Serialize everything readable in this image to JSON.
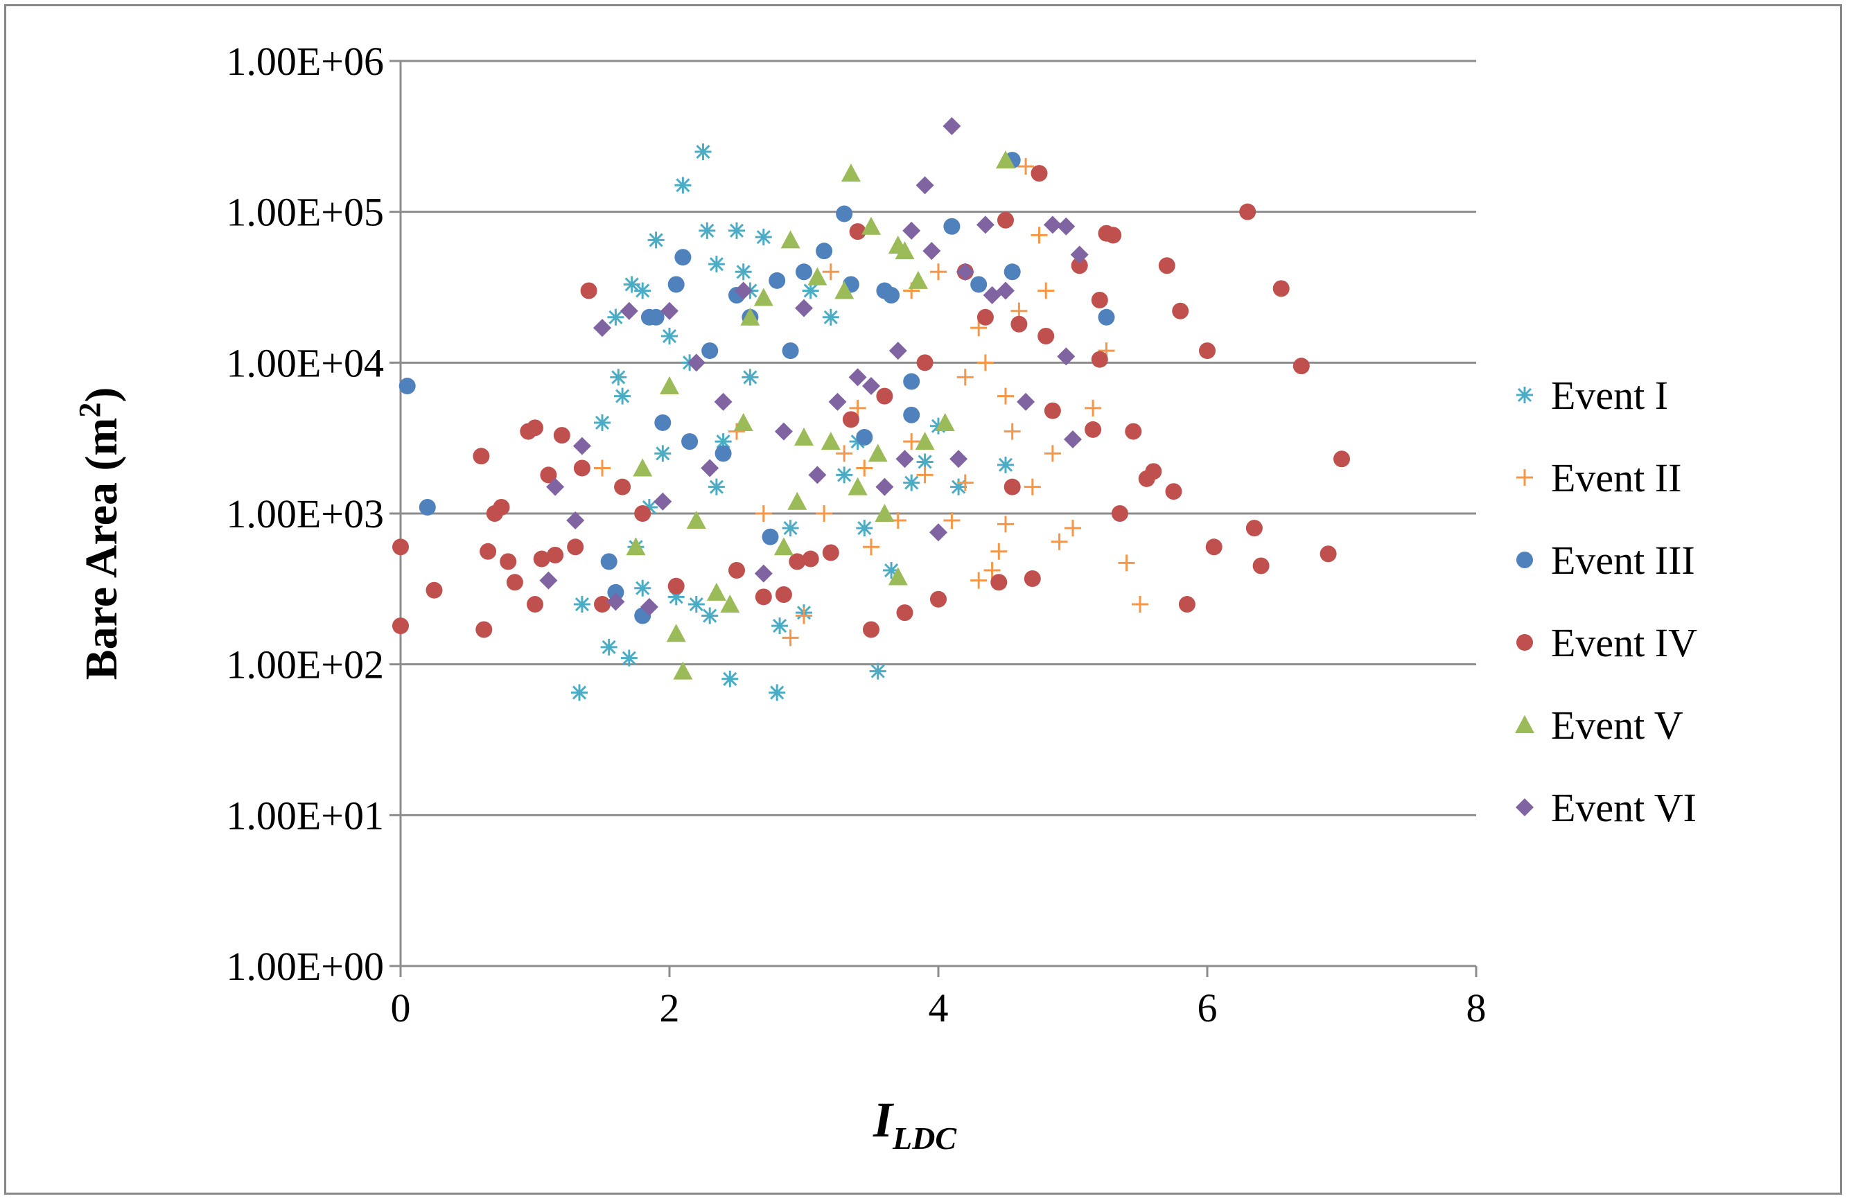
{
  "chart_data": {
    "type": "scatter",
    "title": "",
    "xlabel": "I",
    "xlabel_sub": "LDC",
    "ylabel": "Bare Area (m",
    "ylabel_sup": "2",
    "ylabel_end": ")",
    "xlim": [
      0,
      8
    ],
    "ylim": [
      1,
      1000000
    ],
    "y_scale": "log",
    "x_ticks": [
      "0",
      "2",
      "4",
      "6",
      "8"
    ],
    "y_ticks": [
      "1.00E+00",
      "1.00E+01",
      "1.00E+02",
      "1.00E+03",
      "1.00E+04",
      "1.00E+05",
      "1.00E+06"
    ],
    "grid": "horizontal",
    "legend_position": "right",
    "series": [
      {
        "name": "Event I",
        "color": "#4bacc6",
        "marker": "star",
        "points": [
          [
            1.33,
            65
          ],
          [
            1.35,
            250
          ],
          [
            1.5,
            4000
          ],
          [
            1.55,
            130
          ],
          [
            1.6,
            20000
          ],
          [
            1.62,
            8000
          ],
          [
            1.7,
            110
          ],
          [
            1.72,
            33000
          ],
          [
            1.8,
            30000
          ],
          [
            1.75,
            600
          ],
          [
            1.8,
            320
          ],
          [
            1.85,
            1100
          ],
          [
            1.9,
            65000
          ],
          [
            1.95,
            2500
          ],
          [
            2.05,
            280
          ],
          [
            2.1,
            150000
          ],
          [
            2.15,
            10000
          ],
          [
            2.2,
            250
          ],
          [
            2.25,
            250000
          ],
          [
            2.28,
            75000
          ],
          [
            2.3,
            210
          ],
          [
            2.35,
            45000
          ],
          [
            2.4,
            3000
          ],
          [
            2.45,
            80
          ],
          [
            2.5,
            75000
          ],
          [
            2.55,
            40000
          ],
          [
            2.6,
            30000
          ],
          [
            2.7,
            68000
          ],
          [
            2.8,
            65
          ],
          [
            2.82,
            180
          ],
          [
            2.9,
            800
          ],
          [
            3.0,
            220
          ],
          [
            3.05,
            30000
          ],
          [
            3.2,
            20000
          ],
          [
            3.3,
            1800
          ],
          [
            3.4,
            3000
          ],
          [
            3.45,
            800
          ],
          [
            3.55,
            90
          ],
          [
            3.65,
            420
          ],
          [
            3.8,
            1600
          ],
          [
            3.9,
            2200
          ],
          [
            4.0,
            3800
          ],
          [
            4.15,
            1500
          ],
          [
            4.5,
            2100
          ],
          [
            2.0,
            15000
          ],
          [
            1.65,
            6000
          ],
          [
            2.6,
            8000
          ],
          [
            2.35,
            1500
          ]
        ]
      },
      {
        "name": "Event II",
        "color": "#f79646",
        "marker": "plus",
        "points": [
          [
            1.5,
            2000
          ],
          [
            2.5,
            3500
          ],
          [
            2.7,
            1000
          ],
          [
            2.9,
            150
          ],
          [
            3.0,
            210
          ],
          [
            3.15,
            1000
          ],
          [
            3.3,
            2500
          ],
          [
            3.4,
            5000
          ],
          [
            3.5,
            600
          ],
          [
            3.6,
            1500
          ],
          [
            3.7,
            900
          ],
          [
            3.8,
            3000
          ],
          [
            3.9,
            1800
          ],
          [
            4.0,
            40000
          ],
          [
            4.1,
            900
          ],
          [
            4.2,
            1600
          ],
          [
            4.3,
            17000
          ],
          [
            4.35,
            10000
          ],
          [
            4.4,
            420
          ],
          [
            4.45,
            560
          ],
          [
            4.5,
            6000
          ],
          [
            4.55,
            3500
          ],
          [
            4.6,
            22000
          ],
          [
            4.7,
            1500
          ],
          [
            4.75,
            70000
          ],
          [
            4.8,
            30000
          ],
          [
            4.85,
            2500
          ],
          [
            4.9,
            650
          ],
          [
            5.0,
            800
          ],
          [
            5.15,
            5000
          ],
          [
            5.25,
            12000
          ],
          [
            5.4,
            470
          ],
          [
            5.5,
            250
          ],
          [
            4.3,
            360
          ],
          [
            4.5,
            850
          ],
          [
            3.45,
            2000
          ],
          [
            4.65,
            200000
          ],
          [
            3.8,
            30000
          ],
          [
            4.2,
            8000
          ],
          [
            3.2,
            40000
          ]
        ]
      },
      {
        "name": "Event III",
        "color": "#4f81bd",
        "marker": "circle",
        "points": [
          [
            0.05,
            7000
          ],
          [
            0.2,
            1100
          ],
          [
            1.55,
            480
          ],
          [
            1.6,
            300
          ],
          [
            1.8,
            210
          ],
          [
            1.85,
            20000
          ],
          [
            1.9,
            20000
          ],
          [
            2.05,
            33000
          ],
          [
            2.1,
            50000
          ],
          [
            2.15,
            3000
          ],
          [
            2.3,
            12000
          ],
          [
            2.5,
            28000
          ],
          [
            2.6,
            20000
          ],
          [
            2.8,
            35000
          ],
          [
            2.9,
            12000
          ],
          [
            3.0,
            40000
          ],
          [
            3.15,
            55000
          ],
          [
            3.3,
            97000
          ],
          [
            3.45,
            3200
          ],
          [
            3.6,
            30000
          ],
          [
            3.8,
            7500
          ],
          [
            4.1,
            80000
          ],
          [
            4.3,
            33000
          ],
          [
            4.55,
            40000
          ],
          [
            4.55,
            220000
          ],
          [
            5.25,
            20000
          ],
          [
            3.65,
            28000
          ],
          [
            2.4,
            2500
          ],
          [
            3.8,
            4500
          ],
          [
            2.75,
            700
          ],
          [
            1.95,
            4000
          ],
          [
            3.35,
            33000
          ]
        ]
      },
      {
        "name": "Event IV",
        "color": "#c0504d",
        "marker": "circle",
        "points": [
          [
            0.0,
            180
          ],
          [
            0.0,
            600
          ],
          [
            0.25,
            310
          ],
          [
            0.6,
            2400
          ],
          [
            0.62,
            170
          ],
          [
            0.65,
            560
          ],
          [
            0.7,
            1000
          ],
          [
            0.75,
            1100
          ],
          [
            0.8,
            480
          ],
          [
            0.85,
            350
          ],
          [
            0.95,
            3500
          ],
          [
            1.0,
            3700
          ],
          [
            1.0,
            250
          ],
          [
            1.05,
            500
          ],
          [
            1.1,
            1800
          ],
          [
            1.15,
            530
          ],
          [
            1.2,
            3300
          ],
          [
            1.3,
            600
          ],
          [
            1.35,
            2000
          ],
          [
            1.4,
            30000
          ],
          [
            1.5,
            250
          ],
          [
            1.65,
            1500
          ],
          [
            1.8,
            1000
          ],
          [
            2.05,
            330
          ],
          [
            2.5,
            420
          ],
          [
            2.7,
            280
          ],
          [
            2.85,
            290
          ],
          [
            2.95,
            480
          ],
          [
            3.05,
            500
          ],
          [
            3.2,
            550
          ],
          [
            3.35,
            4200
          ],
          [
            3.5,
            170
          ],
          [
            3.6,
            6000
          ],
          [
            3.75,
            220
          ],
          [
            3.9,
            10000
          ],
          [
            4.0,
            270
          ],
          [
            4.2,
            40000
          ],
          [
            4.35,
            20000
          ],
          [
            4.45,
            350
          ],
          [
            4.5,
            88000
          ],
          [
            4.55,
            1500
          ],
          [
            4.6,
            18000
          ],
          [
            4.7,
            370
          ],
          [
            4.75,
            180000
          ],
          [
            4.8,
            15000
          ],
          [
            4.85,
            4800
          ],
          [
            5.05,
            44000
          ],
          [
            5.15,
            3600
          ],
          [
            5.2,
            10500
          ],
          [
            5.25,
            72000
          ],
          [
            5.3,
            70000
          ],
          [
            5.35,
            1000
          ],
          [
            5.45,
            3500
          ],
          [
            5.55,
            1700
          ],
          [
            5.6,
            1900
          ],
          [
            5.7,
            44000
          ],
          [
            5.75,
            1400
          ],
          [
            5.8,
            22000
          ],
          [
            5.85,
            250
          ],
          [
            6.0,
            12000
          ],
          [
            6.05,
            600
          ],
          [
            6.3,
            100000
          ],
          [
            6.35,
            800
          ],
          [
            6.4,
            450
          ],
          [
            6.55,
            31000
          ],
          [
            6.7,
            9500
          ],
          [
            6.9,
            540
          ],
          [
            7.0,
            2300
          ],
          [
            5.2,
            26000
          ],
          [
            3.4,
            74000
          ]
        ]
      },
      {
        "name": "Event V",
        "color": "#9bbb59",
        "marker": "triangle",
        "points": [
          [
            1.75,
            600
          ],
          [
            1.8,
            2000
          ],
          [
            2.05,
            160
          ],
          [
            2.1,
            90
          ],
          [
            2.2,
            900
          ],
          [
            2.35,
            300
          ],
          [
            2.45,
            250
          ],
          [
            2.6,
            20000
          ],
          [
            2.7,
            27000
          ],
          [
            2.85,
            600
          ],
          [
            2.9,
            65000
          ],
          [
            2.95,
            1200
          ],
          [
            3.2,
            3000
          ],
          [
            3.35,
            180000
          ],
          [
            3.4,
            1500
          ],
          [
            3.5,
            80000
          ],
          [
            3.55,
            2500
          ],
          [
            3.6,
            1000
          ],
          [
            3.7,
            60000
          ],
          [
            3.75,
            55000
          ],
          [
            3.7,
            380
          ],
          [
            3.85,
            35000
          ],
          [
            3.9,
            3000
          ],
          [
            4.05,
            4000
          ],
          [
            4.5,
            220000
          ],
          [
            3.3,
            30000
          ],
          [
            2.0,
            7000
          ],
          [
            2.55,
            4000
          ],
          [
            3.0,
            3200
          ],
          [
            3.1,
            37000
          ]
        ]
      },
      {
        "name": "Event VI",
        "color": "#8064a2",
        "marker": "diamond",
        "points": [
          [
            1.1,
            360
          ],
          [
            1.15,
            1500
          ],
          [
            1.3,
            900
          ],
          [
            1.35,
            2800
          ],
          [
            1.5,
            17000
          ],
          [
            1.6,
            260
          ],
          [
            1.7,
            22000
          ],
          [
            1.85,
            240
          ],
          [
            2.0,
            22000
          ],
          [
            2.2,
            10000
          ],
          [
            2.4,
            5500
          ],
          [
            2.55,
            30000
          ],
          [
            2.7,
            400
          ],
          [
            2.85,
            3500
          ],
          [
            3.0,
            23000
          ],
          [
            3.1,
            1800
          ],
          [
            3.25,
            5500
          ],
          [
            3.4,
            8000
          ],
          [
            3.5,
            7000
          ],
          [
            3.6,
            1500
          ],
          [
            3.75,
            2300
          ],
          [
            3.8,
            75000
          ],
          [
            3.9,
            150000
          ],
          [
            3.95,
            55000
          ],
          [
            4.0,
            750
          ],
          [
            4.1,
            370000
          ],
          [
            4.15,
            2300
          ],
          [
            4.2,
            40000
          ],
          [
            4.35,
            82000
          ],
          [
            4.4,
            28000
          ],
          [
            4.5,
            30000
          ],
          [
            4.65,
            5500
          ],
          [
            4.85,
            82000
          ],
          [
            4.95,
            80000
          ],
          [
            5.0,
            3100
          ],
          [
            5.05,
            52000
          ],
          [
            4.95,
            11000
          ],
          [
            3.7,
            12000
          ],
          [
            2.3,
            2000
          ],
          [
            1.95,
            1200
          ]
        ]
      }
    ]
  }
}
